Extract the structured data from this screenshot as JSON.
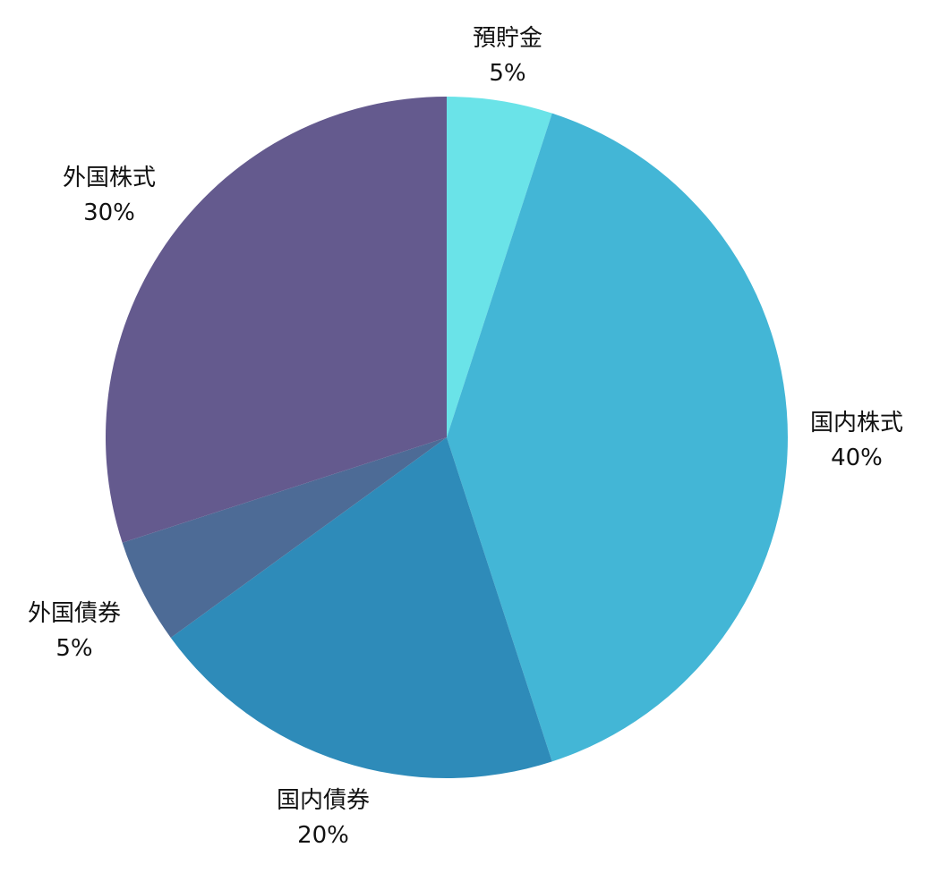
{
  "chart_data": {
    "type": "pie",
    "start_angle": "top",
    "direction": "clockwise",
    "legend": "none",
    "slices": [
      {
        "label": "預貯金",
        "value": 5,
        "value_label": "5%",
        "color": "#6ae3e8"
      },
      {
        "label": "国内株式",
        "value": 40,
        "value_label": "40%",
        "color": "#43b6d6"
      },
      {
        "label": "国内債券",
        "value": 20,
        "value_label": "20%",
        "color": "#2e8bb9"
      },
      {
        "label": "外国債券",
        "value": 5,
        "value_label": "5%",
        "color": "#4d6b96"
      },
      {
        "label": "外国株式",
        "value": 30,
        "value_label": "30%",
        "color": "#645a8e"
      }
    ]
  }
}
